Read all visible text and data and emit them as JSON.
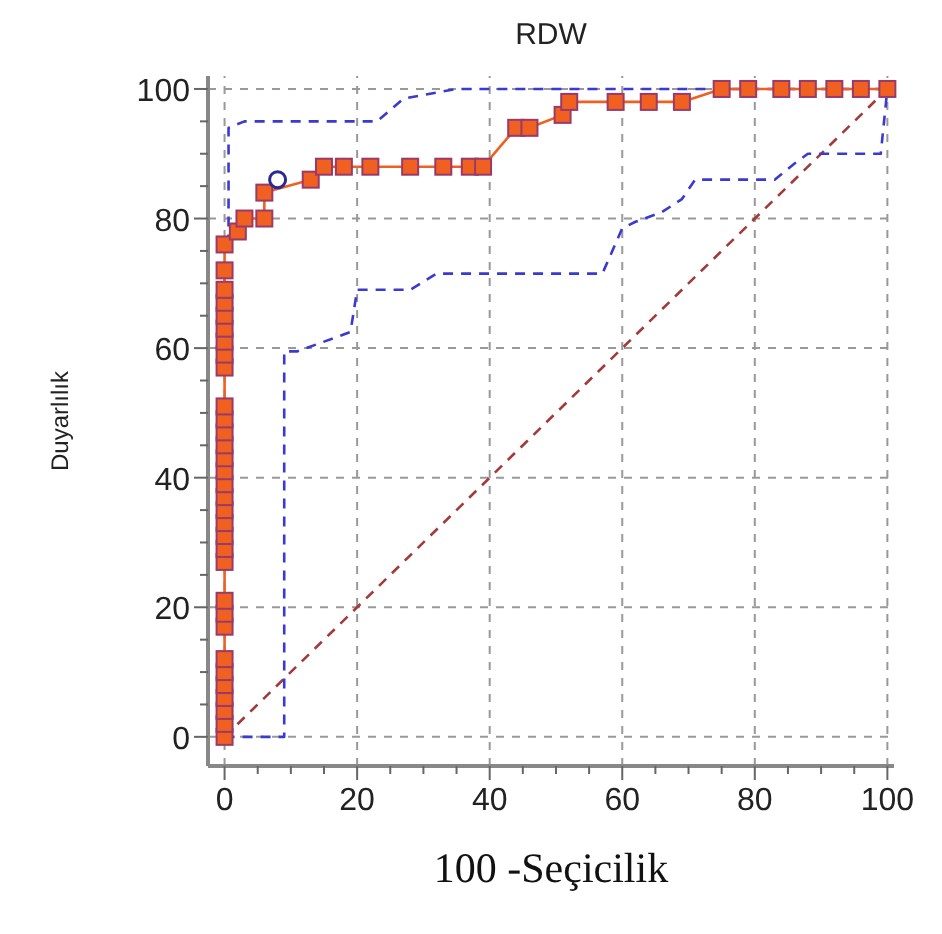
{
  "chart_data": {
    "type": "line",
    "title": "RDW",
    "xlabel": "100 -Seçicilik",
    "ylabel": "Duyarlılık",
    "xlim": [
      -2.5,
      101
    ],
    "ylim": [
      -4.5,
      102
    ],
    "xticks": [
      0,
      {
        "value": 5,
        "label": null
      },
      {
        "value": 10,
        "label": null
      },
      {
        "value": 15,
        "label": null
      },
      20,
      {
        "value": 25,
        "label": null
      },
      {
        "value": 30,
        "label": null
      },
      {
        "value": 35,
        "label": null
      },
      40,
      {
        "value": 45,
        "label": null
      },
      {
        "value": 50,
        "label": null
      },
      {
        "value": 55,
        "label": null
      },
      60,
      {
        "value": 65,
        "label": null
      },
      {
        "value": 70,
        "label": null
      },
      {
        "value": 75,
        "label": null
      },
      80,
      {
        "value": 85,
        "label": null
      },
      {
        "value": 90,
        "label": null
      },
      {
        "value": 95,
        "label": null
      },
      100
    ],
    "yticks": [
      0,
      {
        "value": 5,
        "label": null
      },
      {
        "value": 10,
        "label": null
      },
      {
        "value": 15,
        "label": null
      },
      20,
      {
        "value": 25,
        "label": null
      },
      {
        "value": 30,
        "label": null
      },
      {
        "value": 35,
        "label": null
      },
      40,
      {
        "value": 45,
        "label": null
      },
      {
        "value": 50,
        "label": null
      },
      {
        "value": 55,
        "label": null
      },
      60,
      {
        "value": 65,
        "label": null
      },
      {
        "value": 70,
        "label": null
      },
      {
        "value": 75,
        "label": null
      },
      80,
      {
        "value": 85,
        "label": null
      },
      {
        "value": 90,
        "label": null
      },
      {
        "value": 95,
        "label": null
      },
      100
    ],
    "grid": true,
    "series": [
      {
        "color": "#a33a3a",
        "line_style": "dashed",
        "marker": "none",
        "x": [
          0,
          100
        ],
        "values": [
          0,
          100
        ]
      },
      {
        "type": "line",
        "color": "#3a3ad0",
        "line_style": "dashed",
        "marker": "none",
        "x": [
          0.6,
          0.6,
          3,
          23,
          27,
          35,
          100
        ],
        "values": [
          76,
          94,
          95,
          95,
          98.5,
          100,
          100
        ]
      },
      {
        "type": "line",
        "color": "#3a3ad0",
        "line_style": "dashed",
        "marker": "none",
        "x": [
          0,
          9,
          9,
          11,
          19,
          20,
          28,
          32,
          57,
          60,
          62,
          66,
          69,
          71,
          83,
          86,
          88,
          99,
          100
        ],
        "values": [
          0,
          0,
          59.5,
          59.5,
          62.5,
          69,
          69,
          71.5,
          71.5,
          78.5,
          79.5,
          81,
          83,
          86,
          86,
          88.5,
          90,
          90,
          100
        ]
      },
      {
        "color": "#f06020",
        "line_style": "solid",
        "marker": "square",
        "x": [
          0,
          0,
          0,
          0,
          0,
          0,
          0,
          0,
          0,
          0,
          0,
          0,
          0,
          0,
          0,
          0,
          0,
          0,
          0,
          0,
          0,
          0,
          0,
          0,
          0,
          0,
          0,
          0,
          0,
          0,
          0,
          0,
          2,
          3,
          6,
          6,
          13,
          15,
          18,
          22,
          28,
          33,
          37,
          39,
          44,
          46,
          51,
          52,
          59,
          64,
          69,
          75,
          79,
          84,
          88,
          92,
          96,
          100
        ],
        "values": [
          0,
          2,
          4,
          6,
          8,
          10,
          12,
          17,
          19,
          21,
          27,
          29,
          31,
          33,
          35,
          37,
          39,
          41,
          43,
          45,
          47,
          49,
          51,
          57,
          59,
          61,
          63,
          65,
          67,
          69,
          72,
          76,
          78,
          80,
          80,
          84,
          86,
          88,
          88,
          88,
          88,
          88,
          88,
          88,
          94,
          94,
          96,
          98,
          98,
          98,
          98,
          100,
          100,
          100,
          100,
          100,
          100,
          100
        ]
      },
      {
        "type": "scatter",
        "color": "#2a2a90",
        "marker": "circle",
        "x": [
          8
        ],
        "values": [
          86
        ]
      }
    ]
  }
}
